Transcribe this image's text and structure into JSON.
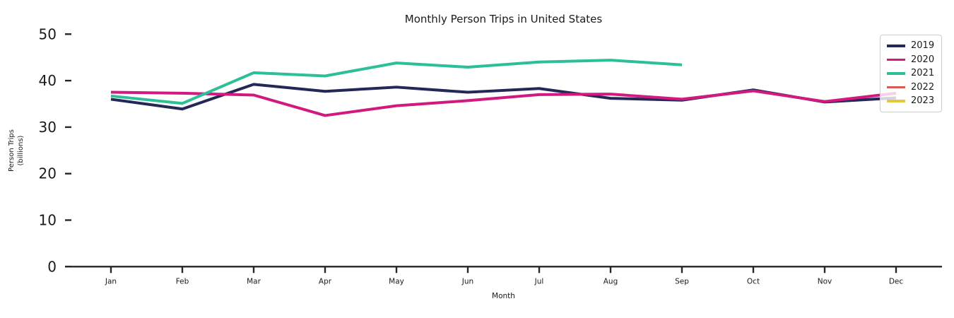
{
  "title": "Monthly Person Trips in United States",
  "x_axis_label": "Month",
  "y_axis_label": "Person Trips\n(billions)",
  "axis_color": "#262626",
  "chart_data": {
    "type": "line",
    "title": "Monthly Person Trips in United States",
    "xlabel": "Month",
    "ylabel": "Person Trips (billions)",
    "categories": [
      "Jan",
      "Feb",
      "Mar",
      "Apr",
      "May",
      "Jun",
      "Jul",
      "Aug",
      "Sep",
      "Oct",
      "Nov",
      "Dec"
    ],
    "y_ticks": [
      0,
      10,
      20,
      30,
      40,
      50
    ],
    "ylim": [
      0,
      50
    ],
    "grid": false,
    "legend_position": "upper right",
    "series": [
      {
        "name": "2019",
        "color": "#232857",
        "values": [
          36.0,
          33.9,
          39.2,
          37.7,
          38.6,
          37.5,
          38.3,
          36.2,
          35.8,
          38.0,
          35.4,
          36.3
        ]
      },
      {
        "name": "2020",
        "color": "#D2197F",
        "values": [
          37.5,
          37.3,
          36.9,
          32.5,
          34.6,
          35.7,
          37.0,
          37.1,
          36.0,
          37.8,
          35.5,
          37.3
        ]
      },
      {
        "name": "2021",
        "color": "#2DBF97",
        "values": [
          36.7,
          35.1,
          41.7,
          41.0,
          43.8,
          42.9,
          44.0,
          44.4,
          43.4,
          null,
          null,
          null
        ]
      },
      {
        "name": "2022",
        "color": "#DC5B50",
        "values": []
      },
      {
        "name": "2023",
        "color": "#E9C53A",
        "values": []
      }
    ]
  }
}
